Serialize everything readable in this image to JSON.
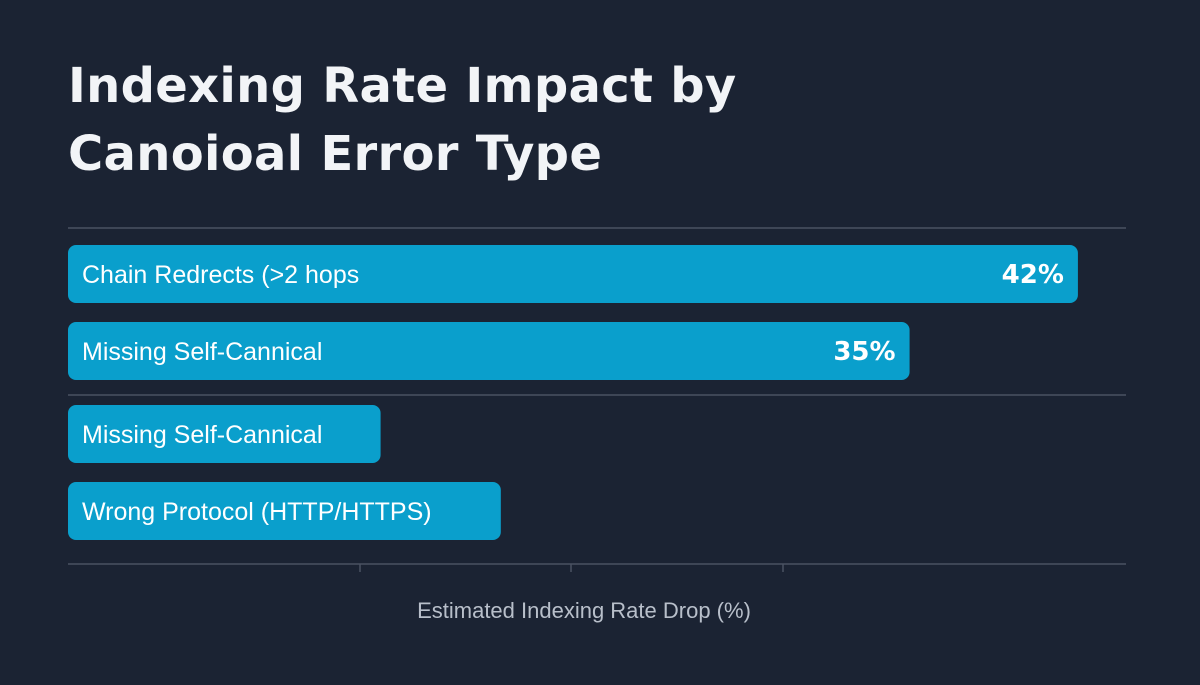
{
  "chart_data": {
    "type": "bar",
    "orientation": "horizontal",
    "title_lines": [
      "Indexing Rate Impact by",
      "Canoioal Error Type"
    ],
    "xlabel": "Estimated Indexing Rate Drop (%)",
    "ylabel": "",
    "xlim": [
      0,
      44
    ],
    "categories": [
      "Chain Redrects (>2 hops",
      "Missing Self-Cannical",
      "Missing Self-Cannical",
      "Wrong Protocol (HTTP/HTTPS)"
    ],
    "values": [
      42,
      35,
      13,
      18
    ],
    "data_labels": [
      "42%",
      "35%",
      "",
      ""
    ],
    "grid": true,
    "legend": "none",
    "colors": {
      "background": "#1b2333",
      "bar": "#0a9fcc",
      "bar_text": "#ffffff",
      "grid": "#4a5262",
      "title": "#f2f4f7",
      "axis_label": "#b8bfca"
    }
  }
}
